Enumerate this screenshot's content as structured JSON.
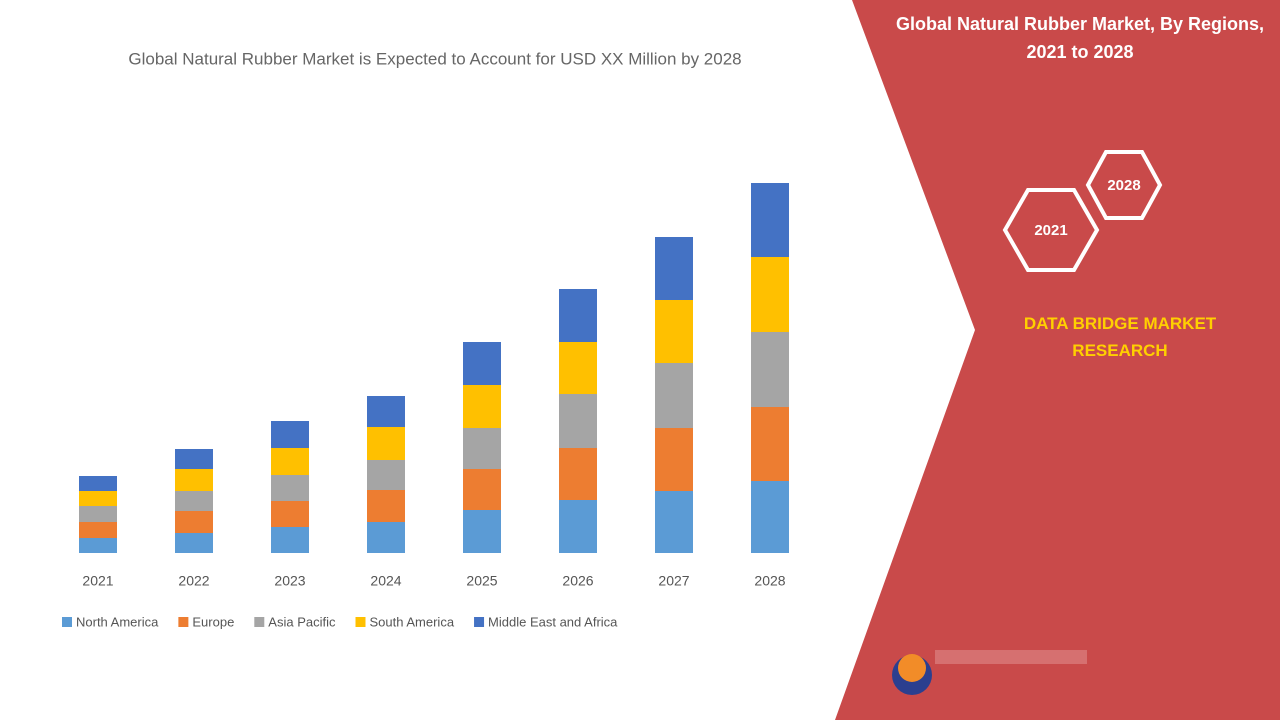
{
  "chart_data": {
    "type": "stacked-bar",
    "title": "Global Natural Rubber Market is Expected to Account for USD XX Million by 2028",
    "categories": [
      "2021",
      "2022",
      "2023",
      "2024",
      "2025",
      "2026",
      "2027",
      "2028"
    ],
    "series": [
      {
        "name": "North America",
        "color": "#5b9bd5",
        "values": [
          15,
          20,
          26,
          31,
          43,
          53,
          62,
          72
        ]
      },
      {
        "name": "Europe",
        "color": "#ed7d31",
        "values": [
          16,
          22,
          26,
          32,
          41,
          52,
          63,
          74
        ]
      },
      {
        "name": "Asia Pacific",
        "color": "#a5a5a5",
        "values": [
          16,
          20,
          26,
          30,
          41,
          54,
          65,
          75
        ]
      },
      {
        "name": "South America",
        "color": "#ffc000",
        "values": [
          15,
          22,
          27,
          33,
          43,
          52,
          63,
          75
        ]
      },
      {
        "name": "Middle East and Africa",
        "color": "#4472c4",
        "values": [
          15,
          20,
          27,
          31,
          43,
          53,
          63,
          74
        ]
      }
    ]
  },
  "panel": {
    "title": "Global Natural Rubber Market, By Regions, 2021 to 2028",
    "hex_left": "2021",
    "hex_right": "2028",
    "brand": "DATA BRIDGE MARKET RESEARCH"
  }
}
